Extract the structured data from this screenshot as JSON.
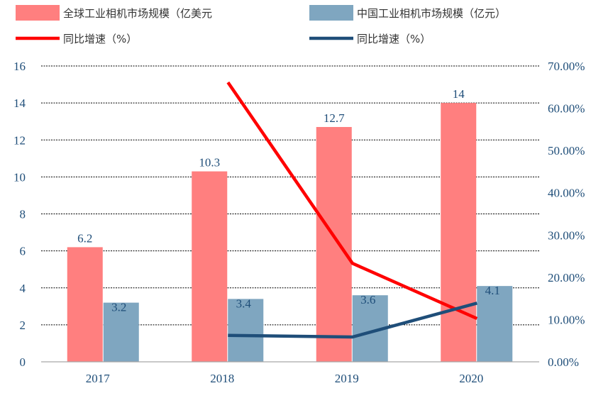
{
  "chart_data": {
    "type": "bar",
    "categories": [
      "2017",
      "2018",
      "2019",
      "2020"
    ],
    "series": [
      {
        "name": "全球工业相机市场规模（亿美元",
        "kind": "bar",
        "axis": "left",
        "values": [
          6.2,
          10.3,
          12.7,
          14
        ],
        "color": "#ff7f7f"
      },
      {
        "name": "中国工业相机市场规模（亿元）",
        "kind": "bar",
        "axis": "left",
        "values": [
          3.2,
          3.4,
          3.6,
          4.1
        ],
        "color": "#7fa6c0"
      },
      {
        "name": "同比增速（%）",
        "kind": "line",
        "axis": "right",
        "values": [
          null,
          66.13,
          23.3,
          10.24
        ],
        "color": "#ff0000"
      },
      {
        "name": "同比增速（%）",
        "kind": "line",
        "axis": "right",
        "values": [
          null,
          6.25,
          5.88,
          13.89
        ],
        "color": "#1f4e79"
      }
    ],
    "bar_labels": {
      "global": [
        "6.2",
        "10.3",
        "12.7",
        "14"
      ],
      "china": [
        "3.2",
        "3.4",
        "3.6",
        "4.1"
      ]
    },
    "y_left": {
      "min": 0,
      "max": 16,
      "ticks": [
        "0",
        "2",
        "4",
        "6",
        "8",
        "10",
        "12",
        "14",
        "16"
      ]
    },
    "y_right": {
      "min": 0,
      "max": 70,
      "ticks": [
        "0.00%",
        "10.00%",
        "20.00%",
        "30.00%",
        "40.00%",
        "50.00%",
        "60.00%",
        "70.00%"
      ]
    },
    "grid": true,
    "legend_position": "top"
  }
}
